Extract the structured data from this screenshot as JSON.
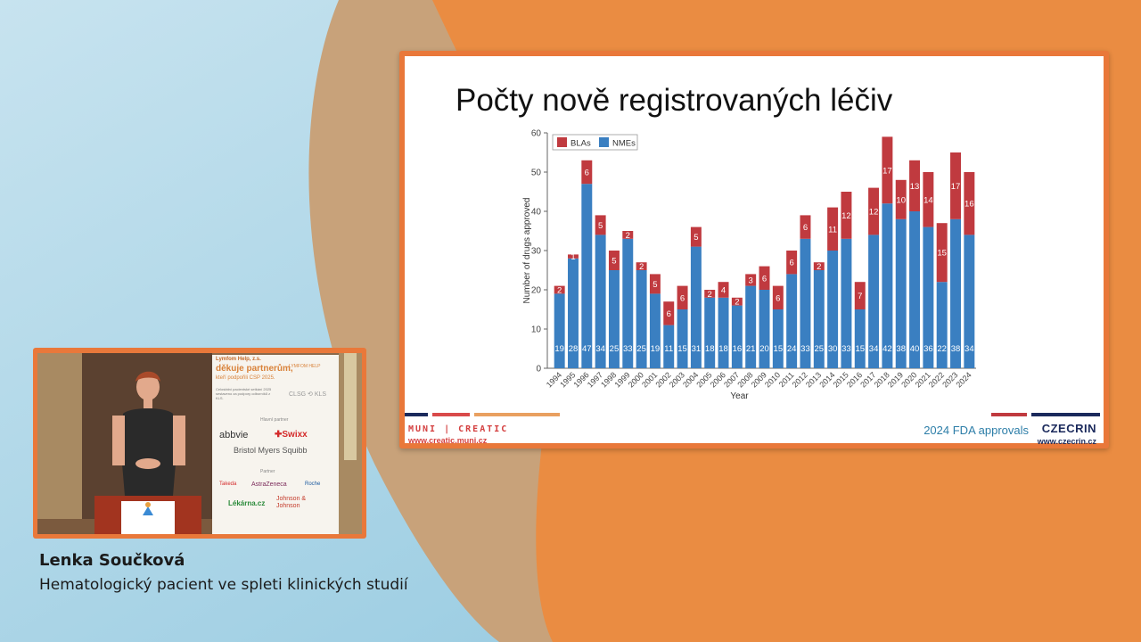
{
  "slide": {
    "title": "Počty nově registrovaných léčiv",
    "footer_caption": "2024 FDA approvals",
    "muni_logo": "MUNI | CREATIC",
    "muni_url": "www.creatic.muni.cz",
    "czecrin_logo": "CZECRIN",
    "czecrin_url": "www.czecrin.cz"
  },
  "chart_data": {
    "type": "bar",
    "stacked": true,
    "xlabel": "Year",
    "ylabel": "Number of drugs approved",
    "ylim": [
      0,
      60
    ],
    "yticks": [
      0,
      10,
      20,
      30,
      40,
      50,
      60
    ],
    "legend_position": "top-left",
    "categories": [
      "1994",
      "1995",
      "1996",
      "1997",
      "1998",
      "1999",
      "2000",
      "2001",
      "2002",
      "2003",
      "2004",
      "2005",
      "2006",
      "2007",
      "2008",
      "2009",
      "2010",
      "2011",
      "2012",
      "2013",
      "2014",
      "2015",
      "2016",
      "2017",
      "2018",
      "2019",
      "2020",
      "2021",
      "2022",
      "2023",
      "2024"
    ],
    "series": [
      {
        "name": "NMEs",
        "color": "#3a7fc1",
        "values": [
          19,
          28,
          47,
          34,
          25,
          33,
          25,
          19,
          11,
          15,
          31,
          18,
          18,
          16,
          21,
          20,
          15,
          24,
          33,
          25,
          30,
          33,
          15,
          34,
          42,
          38,
          40,
          36,
          22,
          38,
          34
        ]
      },
      {
        "name": "BLAs",
        "color": "#c03a3f",
        "values": [
          2,
          1,
          6,
          5,
          5,
          2,
          2,
          5,
          6,
          6,
          5,
          2,
          4,
          2,
          3,
          6,
          6,
          6,
          6,
          2,
          11,
          12,
          7,
          12,
          17,
          10,
          13,
          14,
          15,
          17,
          16
        ]
      }
    ]
  },
  "video": {
    "banner_org": "Lymfom Help, z.s.",
    "banner_headline": "děkuje partnerům,",
    "banner_sub": "kteří podpořili CSP 2025.",
    "banner_note": "Celostátní pacientské setkání 2025 sestaveno za podpory odborníků z KLS.",
    "banner_lymfomhelp": "LYMFOM HELP",
    "banner_kls": "CLSG ⟲ KLS",
    "main_partner_label": "Hlavní partner",
    "partner_label": "Partner",
    "logos": {
      "abbvie": "abbvie",
      "swixx": "✚Swixx",
      "bms": "Bristol Myers Squibb",
      "takeda": "Takeda",
      "astrazeneca": "AstraZeneca",
      "roche": "Roche",
      "lekarna": "Lékárna.cz",
      "jnj": "Johnson & Johnson"
    }
  },
  "caption": {
    "name": "Lenka Součková",
    "subtitle": "Hematologický pacient ve spleti klinických studií"
  },
  "colors": {
    "orange": "#e9783a",
    "blue": "#3a7fc1",
    "red": "#c03a3f",
    "navy": "#1b2a5c"
  }
}
